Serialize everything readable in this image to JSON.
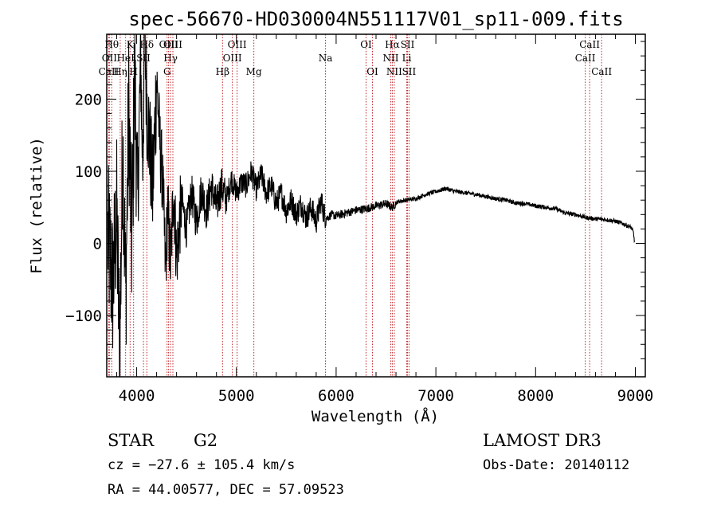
{
  "chart_data": {
    "type": "line",
    "title": "spec-56670-HD030004N551117V01_sp11-009.fits",
    "xlabel": "Wavelength (Å)",
    "ylabel": "Flux (relative)",
    "xlim": [
      3700,
      9100
    ],
    "ylim": [
      -185,
      290
    ],
    "xticks": [
      4000,
      5000,
      6000,
      7000,
      8000,
      9000
    ],
    "yticks": [
      -100,
      0,
      100,
      200
    ],
    "ytick_labels": [
      "−100",
      "0",
      "100",
      "200"
    ],
    "series": [
      {
        "x": [
          3710,
          3760,
          3800,
          3830,
          3860,
          3890,
          3920,
          3950,
          3980,
          4010,
          4040,
          4060,
          4080,
          4100,
          4130,
          4160,
          4200,
          4240,
          4260,
          4290,
          4310,
          4340,
          4370,
          4400,
          4450,
          4500,
          4550,
          4600,
          4650,
          4700,
          4750,
          4800,
          4850,
          4900,
          4950,
          5000,
          5050,
          5100,
          5150,
          5200,
          5250,
          5300,
          5350,
          5400,
          5450,
          5500,
          5550,
          5600,
          5650,
          5700,
          5750,
          5800,
          5850,
          5880,
          5910,
          5950,
          6000,
          6100,
          6200,
          6300,
          6400,
          6500,
          6560,
          6620,
          6700,
          6800,
          6900,
          7000,
          7100,
          7200,
          7300,
          7400,
          7500,
          7600,
          7700,
          7800,
          7900,
          8000,
          8100,
          8200,
          8300,
          8400,
          8500,
          8600,
          8700,
          8800,
          8900,
          8960,
          8980,
          8995
        ],
        "y": [
          10,
          -60,
          40,
          -160,
          150,
          -80,
          190,
          0,
          230,
          60,
          260,
          110,
          290,
          200,
          140,
          70,
          230,
          120,
          90,
          -40,
          50,
          -30,
          80,
          -20,
          60,
          20,
          70,
          30,
          75,
          45,
          80,
          50,
          80,
          60,
          90,
          70,
          85,
          80,
          100,
          75,
          95,
          70,
          80,
          55,
          70,
          45,
          60,
          40,
          55,
          35,
          50,
          30,
          60,
          40,
          35,
          40,
          38,
          42,
          46,
          48,
          52,
          55,
          50,
          58,
          60,
          62,
          68,
          72,
          76,
          72,
          70,
          68,
          65,
          62,
          60,
          56,
          55,
          52,
          50,
          48,
          42,
          40,
          36,
          34,
          33,
          31,
          26,
          22,
          15,
          0
        ],
        "noise": [
          [
            3700,
            4000,
            110
          ],
          [
            4000,
            4200,
            80
          ],
          [
            4200,
            4450,
            55
          ],
          [
            4450,
            4900,
            28
          ],
          [
            4900,
            5900,
            18
          ],
          [
            5900,
            6600,
            6
          ],
          [
            6600,
            9000,
            3
          ]
        ]
      }
    ],
    "lines": [
      {
        "label": "CaII",
        "wl": 3720,
        "row": 2
      },
      {
        "label": "OII",
        "wl": 3727,
        "row": 1
      },
      {
        "label": "Hθ",
        "wl": 3750,
        "row": 0
      },
      {
        "label": "Hη",
        "wl": 3835,
        "row": 2
      },
      {
        "label": "HeI",
        "wl": 3889,
        "row": 1
      },
      {
        "label": "K",
        "wl": 3934,
        "row": 0
      },
      {
        "label": "H",
        "wl": 3969,
        "row": 2
      },
      {
        "label": "SII",
        "wl": 4068,
        "row": 1
      },
      {
        "label": "Hδ",
        "wl": 4102,
        "row": 0
      },
      {
        "label": "G",
        "wl": 4305,
        "row": 2
      },
      {
        "label": "OIII",
        "wl": 4320,
        "row": 0
      },
      {
        "label": "Hγ",
        "wl": 4340,
        "row": 1
      },
      {
        "label": "OIII",
        "wl": 4363,
        "row": 0
      },
      {
        "label": "Hβ",
        "wl": 4861,
        "row": 2
      },
      {
        "label": "OIII",
        "wl": 4959,
        "row": 1
      },
      {
        "label": "OIII",
        "wl": 5007,
        "row": 0
      },
      {
        "label": "Mg",
        "wl": 5175,
        "row": 2
      },
      {
        "label": "Na",
        "wl": 5893,
        "row": 1
      },
      {
        "label": "OI",
        "wl": 6300,
        "row": 0
      },
      {
        "label": "OI",
        "wl": 6364,
        "row": 2
      },
      {
        "label": "NII",
        "wl": 6548,
        "row": 1
      },
      {
        "label": "Hα",
        "wl": 6563,
        "row": 0
      },
      {
        "label": "NII",
        "wl": 6583,
        "row": 2
      },
      {
        "label": "Li",
        "wl": 6708,
        "row": 1
      },
      {
        "label": "SII",
        "wl": 6716,
        "row": 0
      },
      {
        "label": "SII",
        "wl": 6731,
        "row": 2
      },
      {
        "label": "CaII",
        "wl": 8498,
        "row": 1
      },
      {
        "label": "CaII",
        "wl": 8542,
        "row": 0
      },
      {
        "label": "CaII",
        "wl": 8662,
        "row": 2
      }
    ]
  },
  "info": {
    "class": "STAR",
    "subclass": "G2",
    "cz": "cz = −27.6 ± 105.4 km/s",
    "radec": "RA =  44.00577, DEC =  57.09523",
    "survey": "LAMOST DR3",
    "obsdate": "Obs-Date: 20140112"
  }
}
